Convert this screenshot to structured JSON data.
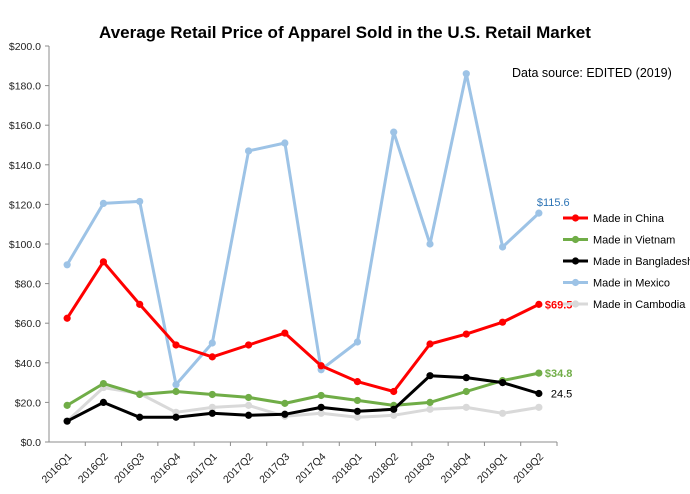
{
  "chart_data": {
    "type": "line",
    "title": "Average Retail Price of Apparel Sold in the U.S. Retail Market",
    "annotation": "Data source: EDITED (2019)",
    "xlabel": "",
    "ylabel": "",
    "ylim": [
      0,
      200
    ],
    "ytick_step": 20,
    "ytick_labels": [
      "$0.0",
      "$20.0",
      "$40.0",
      "$60.0",
      "$80.0",
      "$100.0",
      "$120.0",
      "$140.0",
      "$160.0",
      "$180.0",
      "$200.0"
    ],
    "categories": [
      "2016Q1",
      "2016Q2",
      "2016Q3",
      "2016Q4",
      "2017Q1",
      "2017Q2",
      "2017Q3",
      "2017Q4",
      "2018Q1",
      "2018Q2",
      "2018Q3",
      "2018Q4",
      "2019Q1",
      "2019Q2"
    ],
    "grid": false,
    "legend_position": "right",
    "series": [
      {
        "name": "Made in China",
        "color": "#ff0000",
        "values": [
          62.5,
          91,
          69.5,
          49,
          43,
          49,
          55,
          38.5,
          30.5,
          25.5,
          49.5,
          54.5,
          60.5,
          69.5
        ],
        "end_label": "$69.5",
        "end_label_color": "#ff0000",
        "end_label_bold": true
      },
      {
        "name": "Made in Vietnam",
        "color": "#70ad47",
        "values": [
          18.5,
          29.5,
          24,
          25.5,
          24,
          22.5,
          19.5,
          23.5,
          21,
          18.5,
          20,
          25.5,
          31,
          34.8
        ],
        "end_label": "$34.8",
        "end_label_color": "#70ad47",
        "end_label_bold": true
      },
      {
        "name": "Made in Bangladesh",
        "color": "#000000",
        "values": [
          10.5,
          20,
          12.5,
          12.5,
          14.5,
          13.5,
          14,
          17.5,
          15.5,
          16.5,
          33.5,
          32.5,
          30,
          24.5
        ],
        "end_label": "24.5",
        "end_label_color": "#000000",
        "end_label_bold": false
      },
      {
        "name": "Made in Mexico",
        "color": "#9dc3e6",
        "values": [
          89.5,
          120.5,
          121.5,
          29,
          50,
          147,
          151,
          36.5,
          50.5,
          156.5,
          100,
          186,
          98.5,
          115.6
        ],
        "end_label": "$115.6",
        "end_label_color": "#2e75b6",
        "end_label_bold": false
      },
      {
        "name": "Made in Cambodia",
        "color": "#d9d9d9",
        "values": [
          10.5,
          27.5,
          24.5,
          15,
          17.5,
          18.5,
          13,
          14.5,
          12.5,
          13.5,
          16.5,
          17.5,
          14.5,
          17.5
        ],
        "end_label": "",
        "end_label_color": "#a6a6a6",
        "end_label_bold": false
      }
    ]
  }
}
